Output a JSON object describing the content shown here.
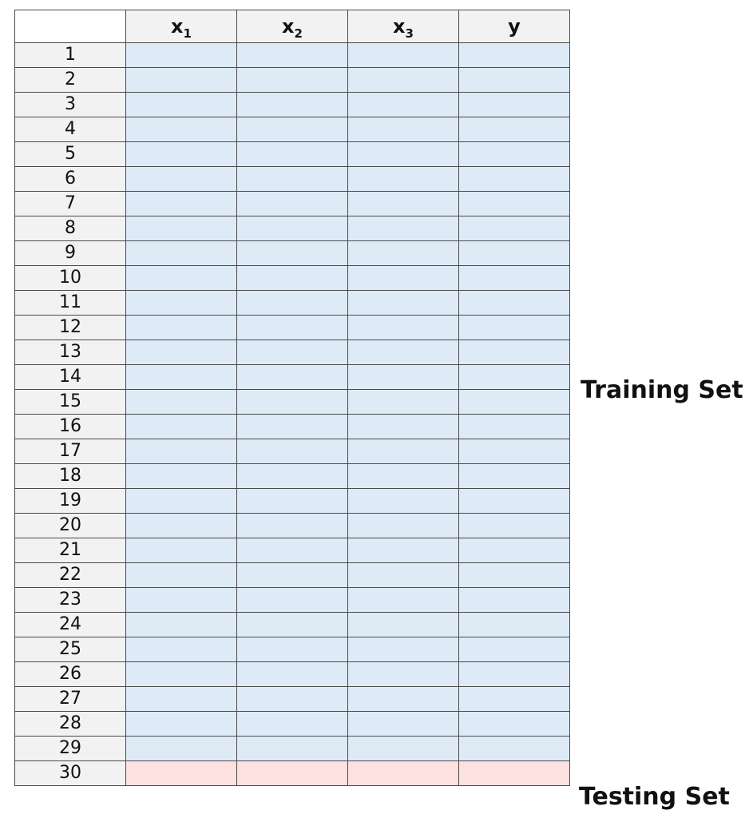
{
  "columns": [
    {
      "base": "x",
      "sub": "1"
    },
    {
      "base": "x",
      "sub": "2"
    },
    {
      "base": "x",
      "sub": "3"
    },
    {
      "base": "y",
      "sub": ""
    }
  ],
  "rows": [
    {
      "label": "1",
      "set": "training"
    },
    {
      "label": "2",
      "set": "training"
    },
    {
      "label": "3",
      "set": "training"
    },
    {
      "label": "4",
      "set": "training"
    },
    {
      "label": "5",
      "set": "training"
    },
    {
      "label": "6",
      "set": "training"
    },
    {
      "label": "7",
      "set": "training"
    },
    {
      "label": "8",
      "set": "training"
    },
    {
      "label": "9",
      "set": "training"
    },
    {
      "label": "10",
      "set": "training"
    },
    {
      "label": "11",
      "set": "training"
    },
    {
      "label": "12",
      "set": "training"
    },
    {
      "label": "13",
      "set": "training"
    },
    {
      "label": "14",
      "set": "training"
    },
    {
      "label": "15",
      "set": "training"
    },
    {
      "label": "16",
      "set": "training"
    },
    {
      "label": "17",
      "set": "training"
    },
    {
      "label": "18",
      "set": "training"
    },
    {
      "label": "19",
      "set": "training"
    },
    {
      "label": "20",
      "set": "training"
    },
    {
      "label": "21",
      "set": "training"
    },
    {
      "label": "22",
      "set": "training"
    },
    {
      "label": "23",
      "set": "training"
    },
    {
      "label": "24",
      "set": "training"
    },
    {
      "label": "25",
      "set": "training"
    },
    {
      "label": "26",
      "set": "training"
    },
    {
      "label": "27",
      "set": "training"
    },
    {
      "label": "28",
      "set": "training"
    },
    {
      "label": "29",
      "set": "training"
    },
    {
      "label": "30",
      "set": "testing"
    }
  ],
  "labels": {
    "training": "Training Set",
    "testing": "Testing Set"
  },
  "colors": {
    "training_fill": "#deebf7",
    "testing_fill": "#fde0e0",
    "header_fill": "#f2f2f2",
    "grid_line": "#4a4a4a"
  }
}
